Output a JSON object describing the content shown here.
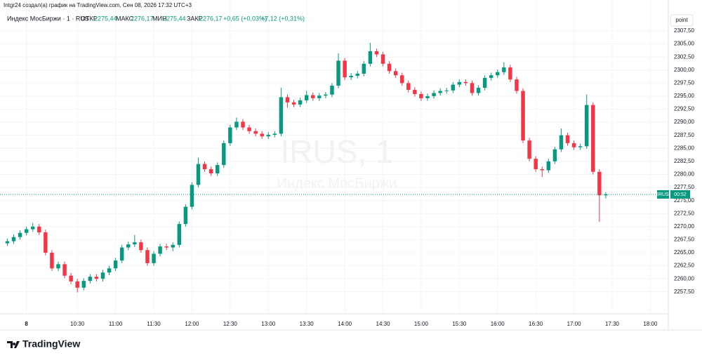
{
  "header": "Intgr24 создал(а) график на TradingView.com, Сен 08, 2026 17:32 UTC+3",
  "footer": {
    "brand": "TradingView"
  },
  "chart_data": {
    "type": "candlestick",
    "legend": {
      "symbol": "Индекс МосБиржи · 1 · RUS",
      "fields": [
        {
          "label": "ОТКР",
          "value": "2275,44"
        },
        {
          "label": "МАКС",
          "value": "2276,17"
        },
        {
          "label": "МИН",
          "value": "2275,44"
        },
        {
          "label": "ЗАКР",
          "value": "2276,17"
        }
      ],
      "change": "+0,65 (+0,03%)",
      "change_day": "+7,12 (+0,31%)"
    },
    "watermark": {
      "title": "IRUS, 1",
      "subtitle": "Индекс МосБиржи"
    },
    "y_unit": "point",
    "price_tag": {
      "symbol": "IRUS",
      "countdown": "00:52"
    },
    "up_color": "#089981",
    "down_color": "#f23645",
    "grid": true,
    "xlim": [
      572,
      1093
    ],
    "xticks": [
      {
        "value": 590,
        "label": "8"
      },
      {
        "value": 630,
        "label": "10:30"
      },
      {
        "value": 660,
        "label": "11:00"
      },
      {
        "value": 690,
        "label": "11:30"
      },
      {
        "value": 720,
        "label": "12:00"
      },
      {
        "value": 750,
        "label": "12:30"
      },
      {
        "value": 780,
        "label": "13:00"
      },
      {
        "value": 810,
        "label": "13:30"
      },
      {
        "value": 840,
        "label": "14:00"
      },
      {
        "value": 870,
        "label": "14:30"
      },
      {
        "value": 900,
        "label": "15:00"
      },
      {
        "value": 930,
        "label": "15:30"
      },
      {
        "value": 960,
        "label": "16:00"
      },
      {
        "value": 990,
        "label": "16:30"
      },
      {
        "value": 1020,
        "label": "17:00"
      },
      {
        "value": 1050,
        "label": "17:30"
      },
      {
        "value": 1080,
        "label": "18:00"
      }
    ],
    "ylim": [
      2253.3,
      2311.0
    ],
    "yticks": [
      {
        "value": 2257.5,
        "label": "2257,50"
      },
      {
        "value": 2260,
        "label": "2260,00"
      },
      {
        "value": 2262.5,
        "label": "2262,50"
      },
      {
        "value": 2265,
        "label": "2265,00"
      },
      {
        "value": 2267.5,
        "label": "2267,50"
      },
      {
        "value": 2270,
        "label": "2270,00"
      },
      {
        "value": 2272.5,
        "label": "2272,50"
      },
      {
        "value": 2275,
        "label": "2275,00"
      },
      {
        "value": 2277.5,
        "label": "2277,50"
      },
      {
        "value": 2280,
        "label": "2280,00"
      },
      {
        "value": 2282.5,
        "label": "2282,50"
      },
      {
        "value": 2285,
        "label": "2285,00"
      },
      {
        "value": 2287.5,
        "label": "2287,50"
      },
      {
        "value": 2290,
        "label": "2290,00"
      },
      {
        "value": 2292.5,
        "label": "2292,50"
      },
      {
        "value": 2295,
        "label": "2295,00"
      },
      {
        "value": 2297.5,
        "label": "2297,50"
      },
      {
        "value": 2300,
        "label": "2300,00"
      },
      {
        "value": 2302.5,
        "label": "2302,50"
      },
      {
        "value": 2305,
        "label": "2305,00"
      },
      {
        "value": 2307.5,
        "label": "2307,50"
      }
    ],
    "x": [
      575,
      580,
      585,
      590,
      595,
      600,
      605,
      610,
      615,
      620,
      625,
      630,
      635,
      640,
      645,
      650,
      655,
      660,
      665,
      670,
      675,
      680,
      685,
      690,
      695,
      700,
      705,
      710,
      715,
      720,
      725,
      730,
      735,
      740,
      745,
      750,
      755,
      760,
      765,
      770,
      775,
      780,
      785,
      790,
      795,
      800,
      805,
      810,
      815,
      820,
      825,
      830,
      835,
      840,
      845,
      850,
      855,
      860,
      865,
      870,
      875,
      880,
      885,
      890,
      895,
      900,
      905,
      910,
      915,
      920,
      925,
      930,
      935,
      940,
      945,
      950,
      955,
      960,
      965,
      970,
      975,
      980,
      985,
      990,
      995,
      1000,
      1005,
      1010,
      1015,
      1020,
      1025,
      1030,
      1035,
      1040,
      1045
    ],
    "open": [
      2266.8,
      2267.2,
      2268,
      2268.8,
      2269.5,
      2270,
      2268.9,
      2265,
      2262,
      2262.8,
      2260.6,
      2259.5,
      2258.3,
      2259.6,
      2260.4,
      2260,
      2261.2,
      2262,
      2263.5,
      2266,
      2266.6,
      2267,
      2265.5,
      2263,
      2264.8,
      2266.2,
      2266,
      2266.5,
      2270.5,
      2273.8,
      2278,
      2282,
      2281,
      2280.2,
      2281.8,
      2286,
      2289,
      2290.1,
      2289,
      2288.3,
      2287.8,
      2287.3,
      2287.6,
      2287.8,
      2294.8,
      2293.8,
      2293.4,
      2294.2,
      2295.2,
      2294.6,
      2295.1,
      2295.3,
      2297,
      2301.8,
      2298.6,
      2298.9,
      2299.3,
      2301.2,
      2303.6,
      2303,
      2301.2,
      2299.8,
      2299,
      2297.5,
      2296.2,
      2295.4,
      2294.6,
      2295,
      2295.6,
      2296,
      2296.1,
      2297.2,
      2297.7,
      2297.5,
      2295.6,
      2296.6,
      2298.5,
      2299,
      2299.6,
      2300.5,
      2298.2,
      2296,
      2286.5,
      2283,
      2281,
      2280.8,
      2282.5,
      2284.8,
      2287.5,
      2286,
      2285.2,
      2285.4,
      2293.3,
      2280.5,
      2276
    ],
    "high": [
      2267.7,
      2268.5,
      2269.3,
      2270,
      2270.7,
      2270.5,
      2269.4,
      2265.5,
      2263.3,
      2263.3,
      2261.1,
      2260,
      2260.1,
      2260.9,
      2260.9,
      2261.7,
      2262.5,
      2264,
      2266.5,
      2267.1,
      2268.4,
      2267.5,
      2266,
      2265.3,
      2266.7,
      2266.7,
      2267,
      2271,
      2274.3,
      2278.5,
      2283.2,
      2282.5,
      2281.5,
      2282.3,
      2286.5,
      2289.5,
      2290.9,
      2290.6,
      2289.5,
      2288.8,
      2288.3,
      2288.1,
      2288.3,
      2296.6,
      2295.3,
      2294.3,
      2294.7,
      2296,
      2295.7,
      2295.6,
      2295.8,
      2297.5,
      2303.2,
      2302.3,
      2299.4,
      2299.8,
      2301.7,
      2305.2,
      2304.1,
      2303.5,
      2301.7,
      2300.3,
      2299.5,
      2298,
      2296.7,
      2295.9,
      2295.5,
      2296.1,
      2296.5,
      2296.6,
      2297.7,
      2298.2,
      2298.2,
      2298,
      2297.1,
      2299,
      2299.5,
      2300.1,
      2301.5,
      2301,
      2298.7,
      2296.5,
      2287,
      2283.5,
      2281.5,
      2283,
      2285.3,
      2288.8,
      2288,
      2286.5,
      2285.9,
      2295.3,
      2293.8,
      2281,
      2276.6
    ],
    "low": [
      2266.3,
      2266.7,
      2267.5,
      2268.3,
      2269,
      2268.4,
      2264.5,
      2261.5,
      2261.5,
      2260.1,
      2259,
      2257.4,
      2257.8,
      2259.1,
      2259.5,
      2259.5,
      2260.7,
      2261.5,
      2263,
      2265.5,
      2266.1,
      2265,
      2262.5,
      2262.5,
      2264.3,
      2265.5,
      2265.3,
      2266,
      2270,
      2273.3,
      2277.5,
      2280.5,
      2279.7,
      2279.7,
      2281.3,
      2285.5,
      2288.5,
      2288.5,
      2287.8,
      2287.3,
      2286.8,
      2286.8,
      2287.1,
      2287.3,
      2292.8,
      2292.9,
      2292.9,
      2293.7,
      2294.1,
      2294.1,
      2294.6,
      2294.8,
      2296.5,
      2298.1,
      2298.1,
      2298.4,
      2298.8,
      2300.7,
      2302.5,
      2300.7,
      2299.3,
      2298.5,
      2297,
      2295.7,
      2294.9,
      2294.1,
      2294.1,
      2294.5,
      2295.1,
      2295.5,
      2295.6,
      2296.7,
      2297,
      2295.1,
      2295.1,
      2296.1,
      2298,
      2298.5,
      2299.1,
      2297.7,
      2295.5,
      2286,
      2282.5,
      2280.5,
      2279.5,
      2280.3,
      2282,
      2284.3,
      2285.5,
      2284.7,
      2284.7,
      2284.9,
      2280,
      2270.9,
      2275.4
    ],
    "close": [
      2267.2,
      2268,
      2268.8,
      2269.5,
      2270,
      2268.9,
      2265,
      2262,
      2262.8,
      2260.6,
      2259.5,
      2258.3,
      2259.6,
      2260.4,
      2260,
      2261.2,
      2262,
      2263.5,
      2266,
      2266.6,
      2267,
      2265.5,
      2263,
      2264.8,
      2266.2,
      2266,
      2266.5,
      2270.5,
      2273.8,
      2278,
      2282,
      2281,
      2280.2,
      2281.8,
      2286,
      2289,
      2290.1,
      2289,
      2288.3,
      2287.8,
      2287.3,
      2287.6,
      2287.8,
      2294.8,
      2293.8,
      2293.4,
      2294.2,
      2295.2,
      2294.6,
      2295.1,
      2295.3,
      2297,
      2301.8,
      2298.6,
      2298.9,
      2299.3,
      2301.2,
      2303.6,
      2303,
      2301.2,
      2299.8,
      2299,
      2297.5,
      2296.2,
      2295.4,
      2294.6,
      2295,
      2295.6,
      2296,
      2296.1,
      2297.2,
      2297.7,
      2297.5,
      2295.6,
      2296.6,
      2298.5,
      2299,
      2299.6,
      2300.5,
      2298.2,
      2296,
      2286.5,
      2283,
      2281,
      2280.8,
      2282.5,
      2284.8,
      2287.5,
      2286,
      2285.2,
      2285.4,
      2293.3,
      2280.5,
      2276,
      2276.17
    ]
  }
}
